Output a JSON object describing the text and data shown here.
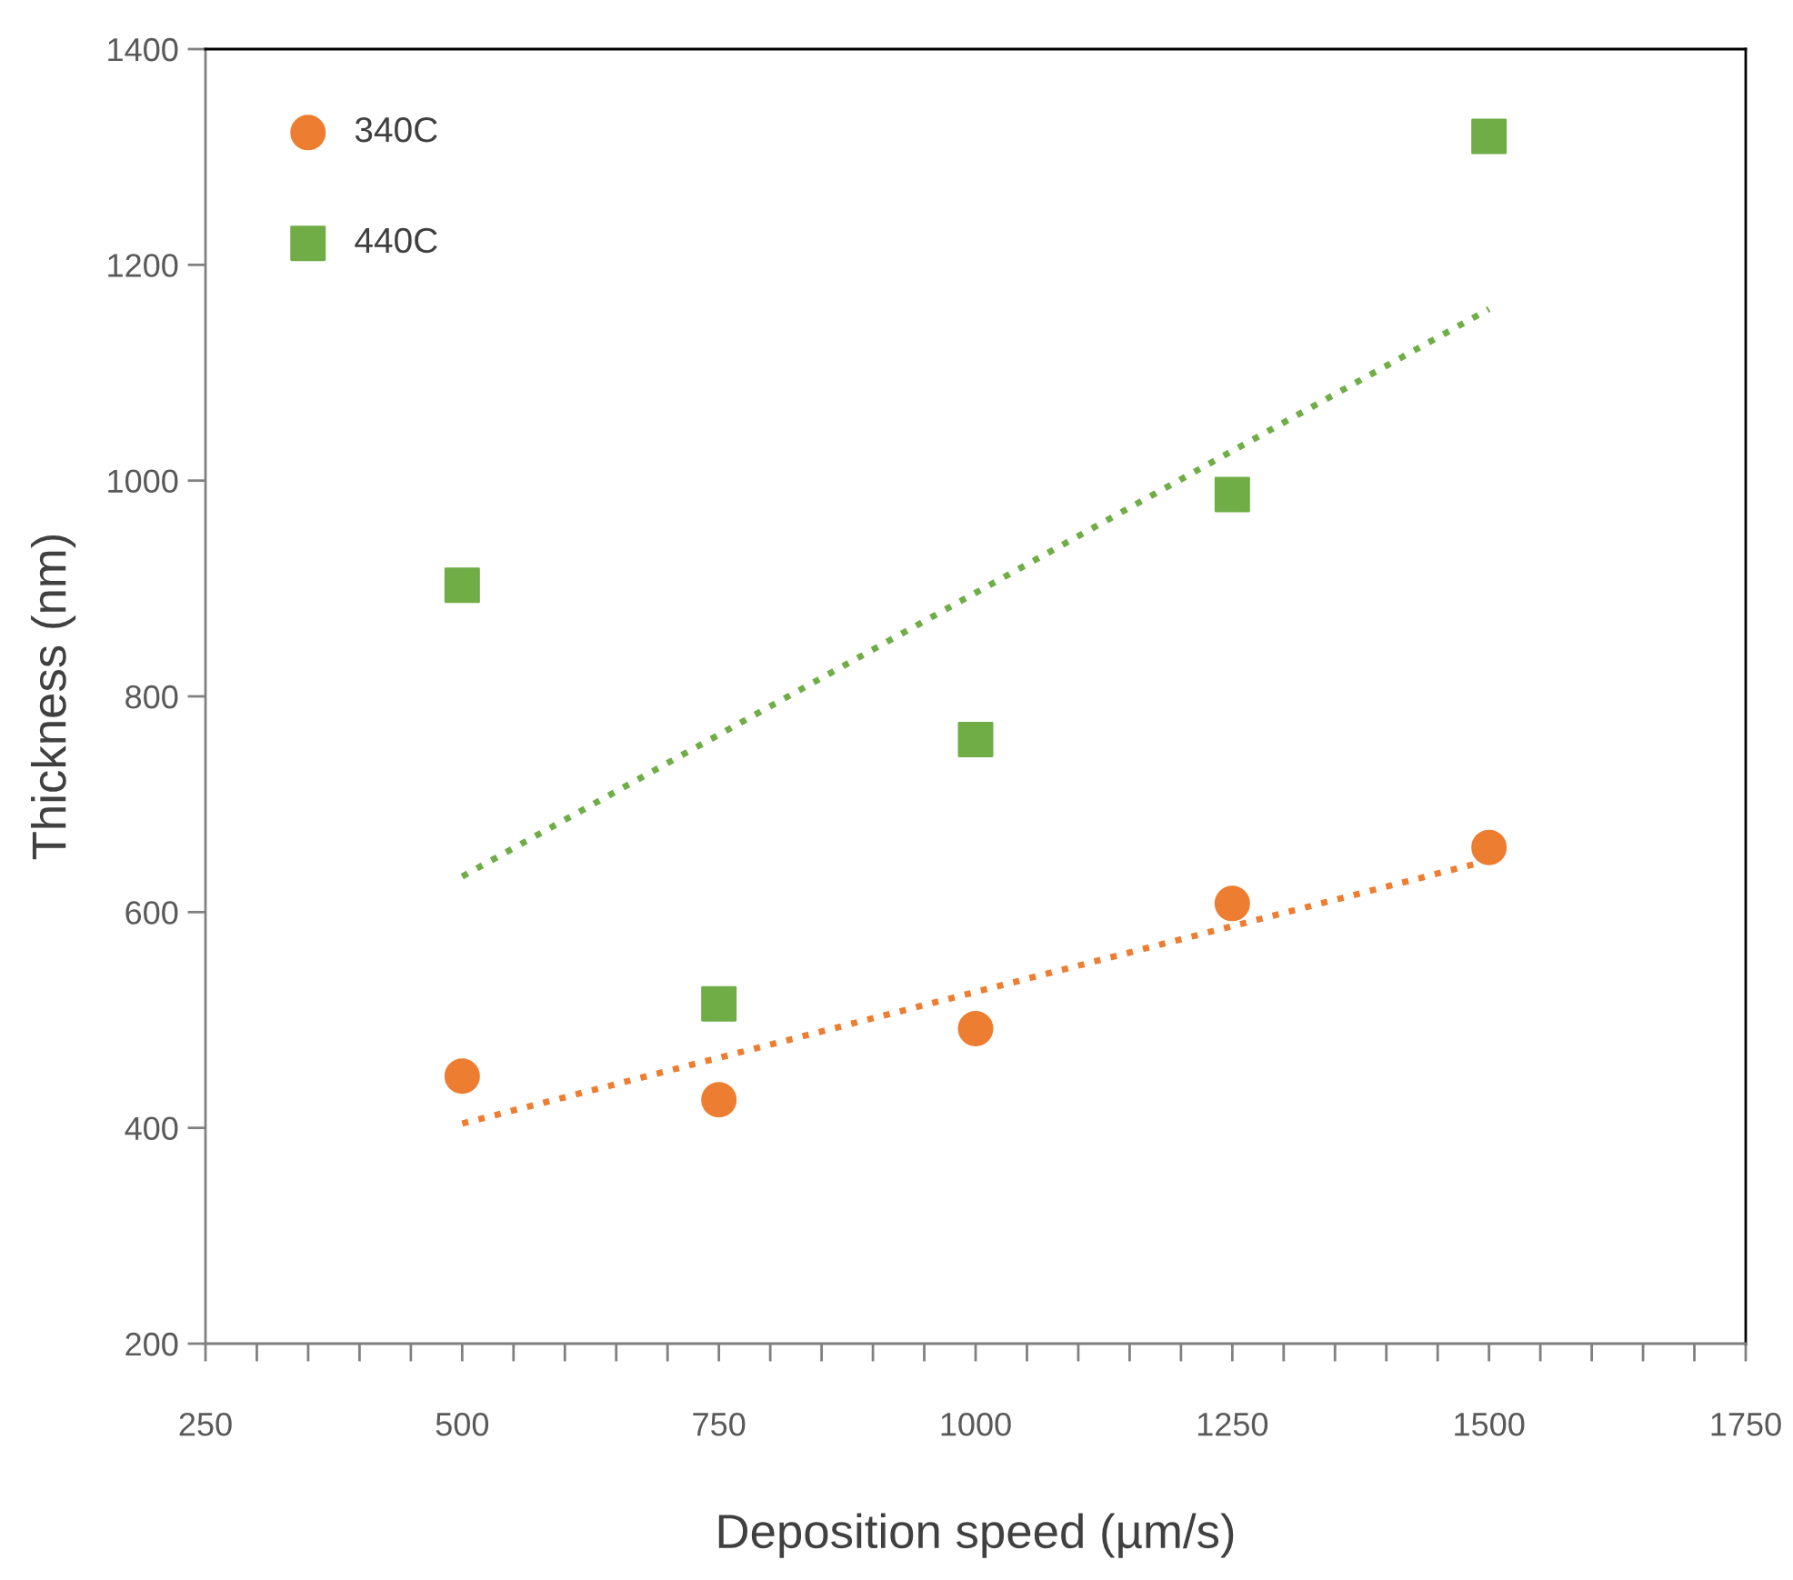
{
  "chart_data": {
    "type": "scatter",
    "xlabel": "Deposition speed (µm/s)",
    "ylabel": "Thickness (nm)",
    "xlim": [
      250,
      1750
    ],
    "ylim": [
      200,
      1400
    ],
    "xticks": [
      250,
      {
        "value": 300,
        "label": null
      },
      {
        "value": 350,
        "label": null
      },
      {
        "value": 400,
        "label": null
      },
      {
        "value": 450,
        "label": null
      },
      500,
      {
        "value": 550,
        "label": null
      },
      {
        "value": 600,
        "label": null
      },
      {
        "value": 650,
        "label": null
      },
      {
        "value": 700,
        "label": null
      },
      750,
      {
        "value": 800,
        "label": null
      },
      {
        "value": 850,
        "label": null
      },
      {
        "value": 900,
        "label": null
      },
      {
        "value": 950,
        "label": null
      },
      1000,
      {
        "value": 1050,
        "label": null
      },
      {
        "value": 1100,
        "label": null
      },
      {
        "value": 1150,
        "label": null
      },
      {
        "value": 1200,
        "label": null
      },
      1250,
      {
        "value": 1300,
        "label": null
      },
      {
        "value": 1350,
        "label": null
      },
      {
        "value": 1400,
        "label": null
      },
      {
        "value": 1450,
        "label": null
      },
      1500,
      {
        "value": 1550,
        "label": null
      },
      {
        "value": 1600,
        "label": null
      },
      {
        "value": 1650,
        "label": null
      },
      {
        "value": 1700,
        "label": null
      },
      1750
    ],
    "yticks": [
      200,
      400,
      600,
      800,
      1000,
      1200,
      1400
    ],
    "grid": false,
    "legend": "top left",
    "series": [
      {
        "name": "340C",
        "color": "#ed7d31",
        "marker": "circle",
        "x": [
          500,
          750,
          1000,
          1250,
          1500
        ],
        "values": [
          448,
          426,
          492,
          608,
          660
        ]
      },
      {
        "name": "440C",
        "color": "#70ad47",
        "marker": "square",
        "x": [
          500,
          750,
          1000,
          1250,
          1500
        ],
        "values": [
          903,
          515,
          760,
          987,
          1319
        ]
      },
      {
        "type": "line",
        "color": "#ed7d31",
        "line_style": "dotted",
        "marker": "none",
        "x": [
          500,
          1500
        ],
        "values": [
          404,
          648
        ]
      },
      {
        "type": "line",
        "color": "#70ad47",
        "line_style": "dotted",
        "marker": "none",
        "x": [
          500,
          1500
        ],
        "values": [
          633,
          1159
        ]
      }
    ]
  }
}
